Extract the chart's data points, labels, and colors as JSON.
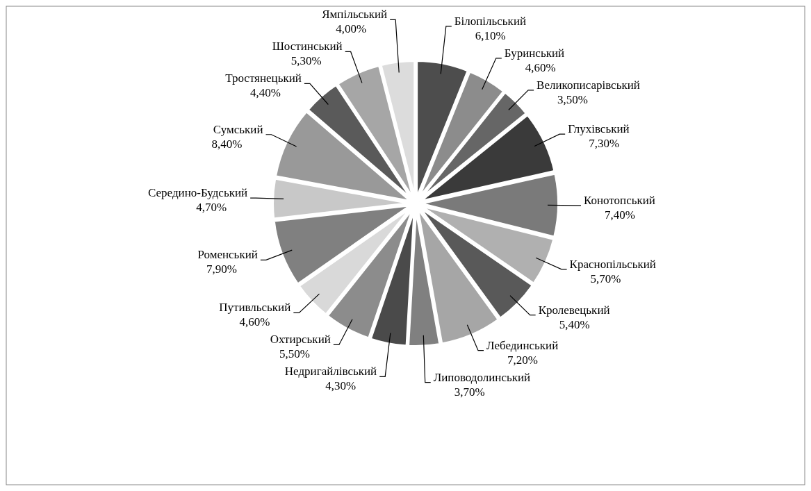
{
  "chart_data": {
    "type": "pie",
    "categories": [
      "Білопільський",
      "Буринський",
      "Великописарівський",
      "Глухівський",
      "Конотопський",
      "Краснопільський",
      "Кролевецький",
      "Лебединський",
      "Липоводолинський",
      "Недригайлівський",
      "Охтирський",
      "Путивльський",
      "Роменський",
      "Середино-Будський",
      "Сумський",
      "Тростянецький",
      "Шостинський",
      "Ямпільський"
    ],
    "values": [
      6.1,
      4.6,
      3.5,
      7.3,
      7.4,
      5.7,
      5.4,
      7.2,
      3.7,
      4.3,
      5.5,
      4.6,
      7.9,
      4.7,
      8.4,
      4.4,
      5.3,
      4.0
    ],
    "value_labels": [
      "6,10%",
      "4,60%",
      "3,50%",
      "7,30%",
      "7,40%",
      "5,70%",
      "5,40%",
      "7,20%",
      "3,70%",
      "4,30%",
      "5,50%",
      "4,60%",
      "7,90%",
      "4,70%",
      "8,40%",
      "4,40%",
      "5,30%",
      "4,00%"
    ],
    "colors": [
      "#4d4d4d",
      "#8c8c8c",
      "#666666",
      "#3a3a3a",
      "#7a7a7a",
      "#b0b0b0",
      "#595959",
      "#a6a6a6",
      "#808080",
      "#4a4a4a",
      "#8c8c8c",
      "#d9d9d9",
      "#808080",
      "#c8c8c8",
      "#999999",
      "#5a5a5a",
      "#a6a6a6",
      "#dcdcdc"
    ]
  }
}
